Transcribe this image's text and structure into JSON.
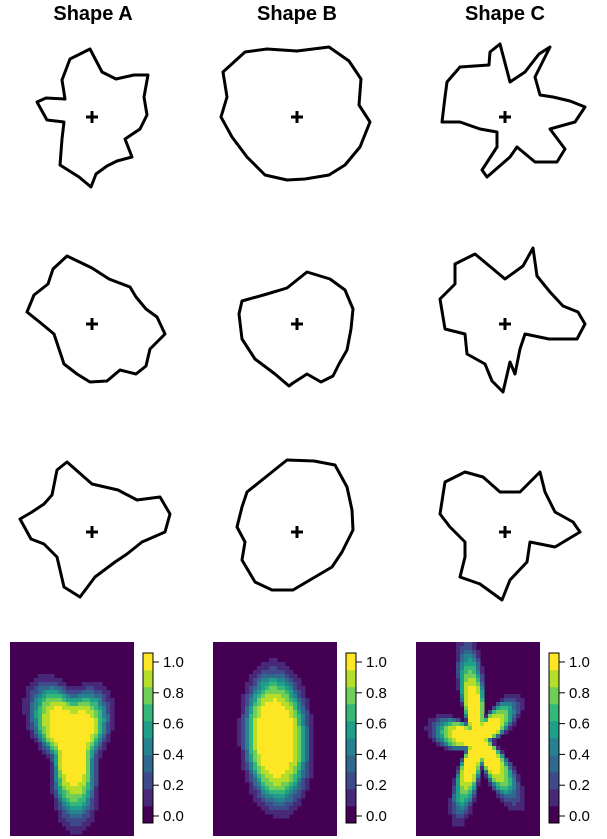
{
  "chart_data": {
    "type": "heatmap",
    "columns": [
      {
        "title": "Shape A",
        "samples": [
          [
            [
              -1,
              -70
            ],
            [
              -13,
              -60
            ],
            [
              -32,
              -48
            ],
            [
              -30,
              -22
            ],
            [
              -28,
              -5
            ],
            [
              -45,
              -3
            ],
            [
              -55,
              15
            ],
            [
              -46,
              19
            ],
            [
              -27,
              18
            ],
            [
              -30,
              37
            ],
            [
              -22,
              58
            ],
            [
              -2,
              68
            ],
            [
              10,
              45
            ],
            [
              24,
              38
            ],
            [
              42,
              42
            ],
            [
              56,
              42
            ],
            [
              52,
              20
            ],
            [
              55,
              2
            ],
            [
              48,
              -12
            ],
            [
              33,
              -22
            ],
            [
              40,
              -40
            ],
            [
              25,
              -44
            ],
            [
              15,
              -49
            ],
            [
              4,
              -57
            ]
          ],
          [
            [
              -2,
              -58
            ],
            [
              -15,
              -50
            ],
            [
              -28,
              -40
            ],
            [
              -38,
              -10
            ],
            [
              -50,
              0
            ],
            [
              -65,
              12
            ],
            [
              -58,
              29
            ],
            [
              -44,
              40
            ],
            [
              -39,
              55
            ],
            [
              -25,
              68
            ],
            [
              0,
              56
            ],
            [
              17,
              45
            ],
            [
              38,
              37
            ],
            [
              44,
              27
            ],
            [
              54,
              15
            ],
            [
              65,
              7
            ],
            [
              73,
              -10
            ],
            [
              58,
              -25
            ],
            [
              54,
              -42
            ],
            [
              44,
              -50
            ],
            [
              28,
              -46
            ],
            [
              15,
              -57
            ]
          ],
          [
            [
              -12,
              -65
            ],
            [
              -28,
              -55
            ],
            [
              -35,
              -25
            ],
            [
              -48,
              -12
            ],
            [
              -61,
              -7
            ],
            [
              -72,
              13
            ],
            [
              -60,
              20
            ],
            [
              -48,
              28
            ],
            [
              -40,
              37
            ],
            [
              -35,
              62
            ],
            [
              -25,
              70
            ],
            [
              0,
              48
            ],
            [
              26,
              42
            ],
            [
              45,
              32
            ],
            [
              68,
              35
            ],
            [
              78,
              18
            ],
            [
              73,
              0
            ],
            [
              50,
              -10
            ],
            [
              35,
              -22
            ],
            [
              23,
              -30
            ],
            [
              3,
              -45
            ]
          ]
        ]
      },
      {
        "title": "Shape B",
        "samples": [
          [
            [
              -10,
              -63
            ],
            [
              -32,
              -58
            ],
            [
              -50,
              -40
            ],
            [
              -65,
              -20
            ],
            [
              -76,
              0
            ],
            [
              -70,
              20
            ],
            [
              -74,
              45
            ],
            [
              -52,
              65
            ],
            [
              -30,
              68
            ],
            [
              0,
              66
            ],
            [
              32,
              70
            ],
            [
              52,
              56
            ],
            [
              64,
              38
            ],
            [
              62,
              12
            ],
            [
              73,
              -5
            ],
            [
              63,
              -30
            ],
            [
              48,
              -48
            ],
            [
              32,
              -58
            ],
            [
              8,
              -62
            ]
          ],
          [
            [
              -8,
              -62
            ],
            [
              -22,
              -50
            ],
            [
              -42,
              -35
            ],
            [
              -55,
              -15
            ],
            [
              -58,
              10
            ],
            [
              -55,
              23
            ],
            [
              -30,
              30
            ],
            [
              -10,
              36
            ],
            [
              10,
              52
            ],
            [
              33,
              45
            ],
            [
              48,
              34
            ],
            [
              56,
              15
            ],
            [
              54,
              -5
            ],
            [
              50,
              -26
            ],
            [
              42,
              -40
            ],
            [
              36,
              -52
            ],
            [
              24,
              -58
            ],
            [
              10,
              -50
            ],
            [
              -4,
              -59
            ]
          ],
          [
            [
              -25,
              -58
            ],
            [
              -42,
              -50
            ],
            [
              -55,
              -28
            ],
            [
              -52,
              -10
            ],
            [
              -60,
              5
            ],
            [
              -55,
              25
            ],
            [
              -50,
              40
            ],
            [
              -25,
              60
            ],
            [
              -10,
              72
            ],
            [
              17,
              71
            ],
            [
              38,
              67
            ],
            [
              50,
              45
            ],
            [
              55,
              22
            ],
            [
              56,
              2
            ],
            [
              45,
              -20
            ],
            [
              35,
              -35
            ],
            [
              18,
              -45
            ],
            [
              -4,
              -58
            ]
          ]
        ]
      },
      {
        "title": "Shape C",
        "samples": [
          [
            [
              -18,
              -60
            ],
            [
              -23,
              -53
            ],
            [
              -8,
              -30
            ],
            [
              -8,
              -15
            ],
            [
              -25,
              -12
            ],
            [
              -45,
              -5
            ],
            [
              -63,
              -5
            ],
            [
              -60,
              20
            ],
            [
              -58,
              35
            ],
            [
              -45,
              50
            ],
            [
              -16,
              52
            ],
            [
              -15,
              65
            ],
            [
              -5,
              73
            ],
            [
              5,
              35
            ],
            [
              20,
              45
            ],
            [
              34,
              63
            ],
            [
              45,
              70
            ],
            [
              30,
              40
            ],
            [
              35,
              22
            ],
            [
              48,
              20
            ],
            [
              65,
              16
            ],
            [
              80,
              10
            ],
            [
              70,
              -5
            ],
            [
              45,
              -12
            ],
            [
              60,
              -32
            ],
            [
              52,
              -45
            ],
            [
              30,
              -45
            ],
            [
              12,
              -30
            ],
            [
              5,
              -40
            ]
          ],
          [
            [
              -2,
              -68
            ],
            [
              -13,
              -57
            ],
            [
              -20,
              -40
            ],
            [
              -38,
              -30
            ],
            [
              -40,
              -10
            ],
            [
              -60,
              -5
            ],
            [
              -65,
              25
            ],
            [
              -50,
              40
            ],
            [
              -50,
              60
            ],
            [
              -30,
              70
            ],
            [
              0,
              45
            ],
            [
              18,
              58
            ],
            [
              28,
              76
            ],
            [
              32,
              48
            ],
            [
              45,
              32
            ],
            [
              58,
              18
            ],
            [
              73,
              12
            ],
            [
              80,
              0
            ],
            [
              72,
              -15
            ],
            [
              44,
              -15
            ],
            [
              20,
              -10
            ],
            [
              15,
              -25
            ],
            [
              10,
              -50
            ],
            [
              5,
              -38
            ]
          ],
          [
            [
              -3,
              -68
            ],
            [
              -25,
              -52
            ],
            [
              -45,
              -45
            ],
            [
              -40,
              -25
            ],
            [
              -40,
              -10
            ],
            [
              -55,
              5
            ],
            [
              -65,
              18
            ],
            [
              -60,
              50
            ],
            [
              -40,
              60
            ],
            [
              -22,
              55
            ],
            [
              -5,
              40
            ],
            [
              15,
              40
            ],
            [
              35,
              60
            ],
            [
              40,
              40
            ],
            [
              45,
              30
            ],
            [
              50,
              20
            ],
            [
              68,
              10
            ],
            [
              75,
              0
            ],
            [
              50,
              -15
            ],
            [
              25,
              -10
            ],
            [
              22,
              -30
            ],
            [
              5,
              -48
            ]
          ]
        ]
      }
    ],
    "colorbar": {
      "ticks": [
        "0.0",
        "0.2",
        "0.4",
        "0.6",
        "0.8",
        "1.0"
      ],
      "levels": [
        0,
        0.1,
        0.2,
        0.3,
        0.4,
        0.5,
        0.6,
        0.7,
        0.8,
        0.9,
        1.0
      ],
      "colors": [
        "#440154",
        "#482878",
        "#3e4a89",
        "#31688e",
        "#26828e",
        "#1f9e89",
        "#35b779",
        "#6ece58",
        "#b5de2b",
        "#fde725"
      ]
    },
    "heatmaps": [
      {
        "cx": 0.0,
        "cy": 0.0,
        "sx": 0.62,
        "sy": 0.82,
        "rotation": 0.35,
        "petals": 3,
        "petal_amp": 0.28,
        "petal_phase": 0.6
      },
      {
        "cx": 0.0,
        "cy": 0.0,
        "sx": 0.63,
        "sy": 0.85,
        "rotation": 0.15,
        "petals": 1,
        "petal_amp": 0.04,
        "petal_phase": 0.0
      },
      {
        "cx": -0.05,
        "cy": 0.0,
        "sx": 0.55,
        "sy": 0.75,
        "rotation": 0.25,
        "petals": 5,
        "petal_amp": 0.55,
        "petal_phase": 1.3
      }
    ]
  }
}
